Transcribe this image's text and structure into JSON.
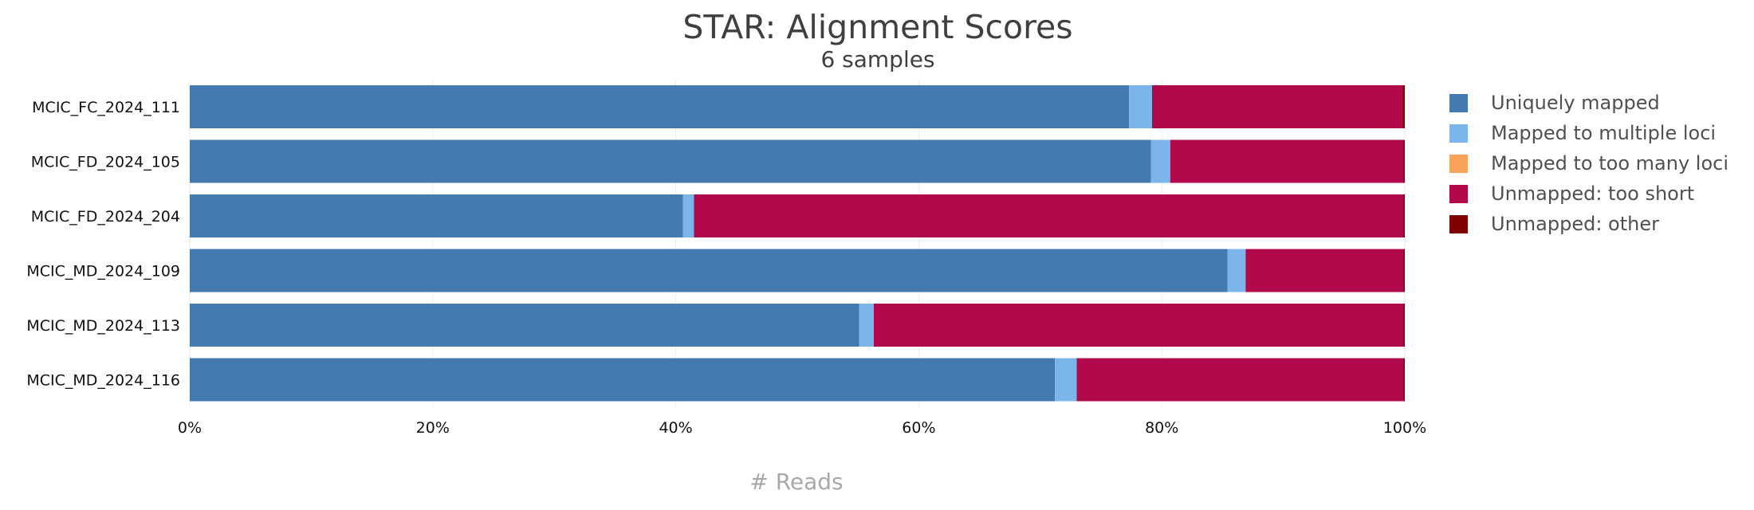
{
  "chart_data": {
    "type": "bar",
    "orientation": "horizontal",
    "stacked": true,
    "percentage": true,
    "title": "STAR: Alignment Scores",
    "subtitle": "6 samples",
    "xlabel": "# Reads",
    "ylabel": "",
    "xlim": [
      0,
      100
    ],
    "x_ticks": [
      "0%",
      "20%",
      "40%",
      "60%",
      "80%",
      "100%"
    ],
    "grid": true,
    "legend_position": "right",
    "categories": [
      "MCIC_FC_2024_111",
      "MCIC_FD_2024_105",
      "MCIC_FD_2024_204",
      "MCIC_MD_2024_109",
      "MCIC_MD_2024_113",
      "MCIC_MD_2024_116"
    ],
    "series": [
      {
        "name": "Uniquely mapped",
        "color": "#437bb1",
        "values": [
          77.3,
          79.1,
          40.6,
          85.4,
          55.1,
          71.2
        ]
      },
      {
        "name": "Mapped to multiple loci",
        "color": "#7cb5ec",
        "values": [
          1.9,
          1.6,
          0.9,
          1.5,
          1.2,
          1.8
        ]
      },
      {
        "name": "Mapped to too many loci",
        "color": "#f7a35c",
        "values": [
          0.0,
          0.0,
          0.0,
          0.0,
          0.0,
          0.0
        ]
      },
      {
        "name": "Unmapped: too short",
        "color": "#b1084c",
        "values": [
          20.6,
          19.2,
          58.4,
          13.0,
          43.6,
          26.9
        ]
      },
      {
        "name": "Unmapped: other",
        "color": "#7f0000",
        "values": [
          0.2,
          0.1,
          0.1,
          0.1,
          0.1,
          0.1
        ]
      }
    ]
  }
}
